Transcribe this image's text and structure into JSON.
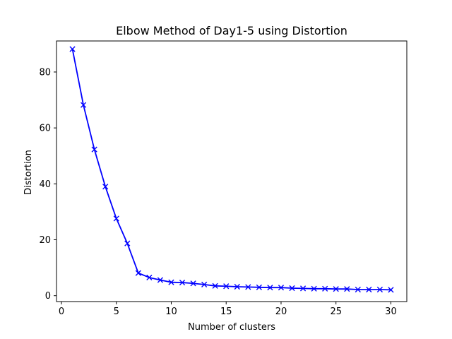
{
  "chart_data": {
    "type": "line",
    "title": "Elbow Method of Day1-5 using Distortion",
    "xlabel": "Number of clusters",
    "ylabel": "Distortion",
    "xlim": [
      -0.45,
      31.45
    ],
    "ylim": [
      -2.1,
      91.1
    ],
    "xticks": [
      0,
      5,
      10,
      15,
      20,
      25,
      30
    ],
    "yticks": [
      0,
      20,
      40,
      60,
      80
    ],
    "grid": false,
    "series": [
      {
        "marker": "x",
        "color": "#0000ff",
        "x": [
          1,
          2,
          3,
          4,
          5,
          6,
          7,
          8,
          9,
          10,
          11,
          12,
          13,
          14,
          15,
          16,
          17,
          18,
          19,
          20,
          21,
          22,
          23,
          24,
          25,
          26,
          27,
          28,
          29,
          30
        ],
        "values": [
          88.2,
          68.2,
          52.3,
          39.0,
          27.6,
          18.7,
          8.1,
          6.5,
          5.6,
          4.8,
          4.7,
          4.4,
          4.0,
          3.5,
          3.4,
          3.2,
          3.1,
          3.0,
          2.9,
          2.9,
          2.7,
          2.6,
          2.5,
          2.5,
          2.4,
          2.4,
          2.2,
          2.2,
          2.2,
          2.1
        ]
      }
    ]
  }
}
